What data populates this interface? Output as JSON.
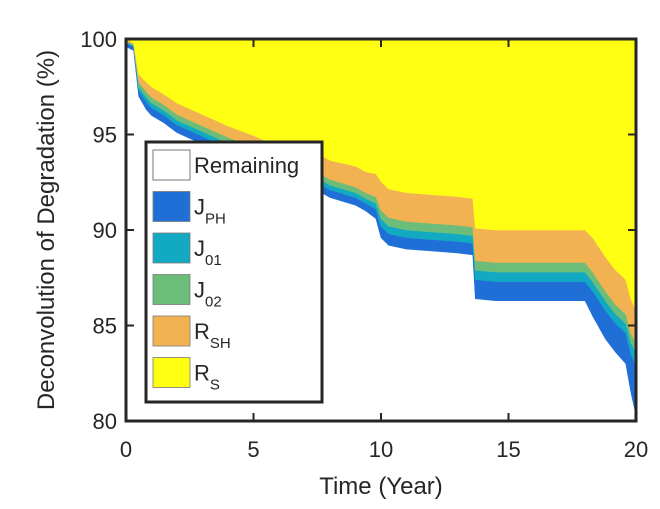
{
  "chart_data": {
    "type": "area",
    "title": "",
    "xlabel": "Time (Year)",
    "ylabel": "Deconvolution of Degradation (%)",
    "xlim": [
      0,
      20
    ],
    "ylim": [
      80,
      100
    ],
    "xticks": [
      0,
      5,
      10,
      15,
      20
    ],
    "yticks": [
      80,
      85,
      90,
      95,
      100
    ],
    "grid": false,
    "legend_position": "bottom-left",
    "x": [
      0,
      0.3,
      0.5,
      0.8,
      1.0,
      1.5,
      2.0,
      3.0,
      4.0,
      5.0,
      6.0,
      7.0,
      7.6,
      8.0,
      9.0,
      9.4,
      9.8,
      10.0,
      10.3,
      11.0,
      12.0,
      13.0,
      13.6,
      13.7,
      14.5,
      16.0,
      17.0,
      18.0,
      18.3,
      18.8,
      19.2,
      19.6,
      19.8,
      20.0
    ],
    "series": [
      {
        "name": "Remaining",
        "color": "#ffffff",
        "values": [
          99.6,
          99.4,
          97.0,
          96.3,
          96.0,
          95.6,
          95.1,
          94.5,
          93.9,
          93.4,
          92.8,
          92.3,
          92.0,
          91.7,
          91.3,
          91.0,
          90.6,
          89.6,
          89.2,
          89.0,
          88.9,
          88.8,
          88.7,
          86.4,
          86.3,
          86.3,
          86.3,
          86.3,
          85.5,
          84.3,
          83.6,
          83.0,
          81.5,
          80.3
        ]
      },
      {
        "name": "J_PH",
        "color": "#1f6fd6",
        "values": [
          0.2,
          0.2,
          0.3,
          0.4,
          0.4,
          0.4,
          0.4,
          0.4,
          0.4,
          0.4,
          0.4,
          0.4,
          0.4,
          0.4,
          0.4,
          0.4,
          0.5,
          0.6,
          0.6,
          0.6,
          0.6,
          0.6,
          0.6,
          1.0,
          1.0,
          1.0,
          1.0,
          1.0,
          1.3,
          1.5,
          1.5,
          1.6,
          2.0,
          2.6
        ]
      },
      {
        "name": "J_01",
        "color": "#12a9c2",
        "values": [
          0.05,
          0.05,
          0.2,
          0.25,
          0.25,
          0.25,
          0.25,
          0.25,
          0.25,
          0.25,
          0.25,
          0.25,
          0.25,
          0.25,
          0.25,
          0.25,
          0.3,
          0.4,
          0.4,
          0.4,
          0.4,
          0.4,
          0.4,
          0.5,
          0.5,
          0.5,
          0.5,
          0.5,
          0.5,
          0.5,
          0.5,
          0.5,
          0.6,
          0.7
        ]
      },
      {
        "name": "J_02",
        "color": "#6dbd7a",
        "values": [
          0.05,
          0.05,
          0.25,
          0.3,
          0.3,
          0.3,
          0.3,
          0.3,
          0.3,
          0.3,
          0.3,
          0.3,
          0.3,
          0.3,
          0.3,
          0.3,
          0.35,
          0.45,
          0.45,
          0.45,
          0.45,
          0.45,
          0.45,
          0.5,
          0.5,
          0.5,
          0.5,
          0.5,
          0.5,
          0.5,
          0.5,
          0.5,
          0.5,
          0.5
        ]
      },
      {
        "name": "R_SH",
        "color": "#f2b252",
        "values": [
          0.1,
          0.1,
          0.4,
          0.5,
          0.55,
          0.55,
          0.6,
          0.6,
          0.6,
          0.6,
          0.6,
          0.65,
          1.0,
          1.0,
          1.1,
          1.1,
          1.2,
          1.5,
          1.5,
          1.5,
          1.5,
          1.5,
          1.5,
          1.7,
          1.7,
          1.7,
          1.7,
          1.7,
          1.8,
          1.8,
          1.8,
          1.8,
          1.8,
          1.7
        ]
      },
      {
        "name": "R_S",
        "color": "#ffff14",
        "values": [
          0.0,
          0.2,
          1.85,
          2.25,
          2.5,
          2.9,
          3.35,
          3.95,
          4.55,
          5.05,
          5.65,
          6.1,
          6.05,
          6.35,
          6.95,
          7.25,
          7.05,
          7.45,
          7.85,
          8.05,
          8.15,
          8.25,
          8.35,
          9.9,
          10.0,
          10.0,
          10.0,
          10.0,
          10.4,
          11.4,
          12.1,
          12.6,
          13.6,
          14.2
        ]
      }
    ]
  },
  "legend": [
    {
      "main": "Remaining",
      "sub": "",
      "color": "#ffffff"
    },
    {
      "main": "J",
      "sub": "PH",
      "color": "#1f6fd6"
    },
    {
      "main": "J",
      "sub": "01",
      "color": "#12a9c2"
    },
    {
      "main": "J",
      "sub": "02",
      "color": "#6dbd7a"
    },
    {
      "main": "R",
      "sub": "SH",
      "color": "#f2b252"
    },
    {
      "main": "R",
      "sub": "S",
      "color": "#ffff14"
    }
  ]
}
